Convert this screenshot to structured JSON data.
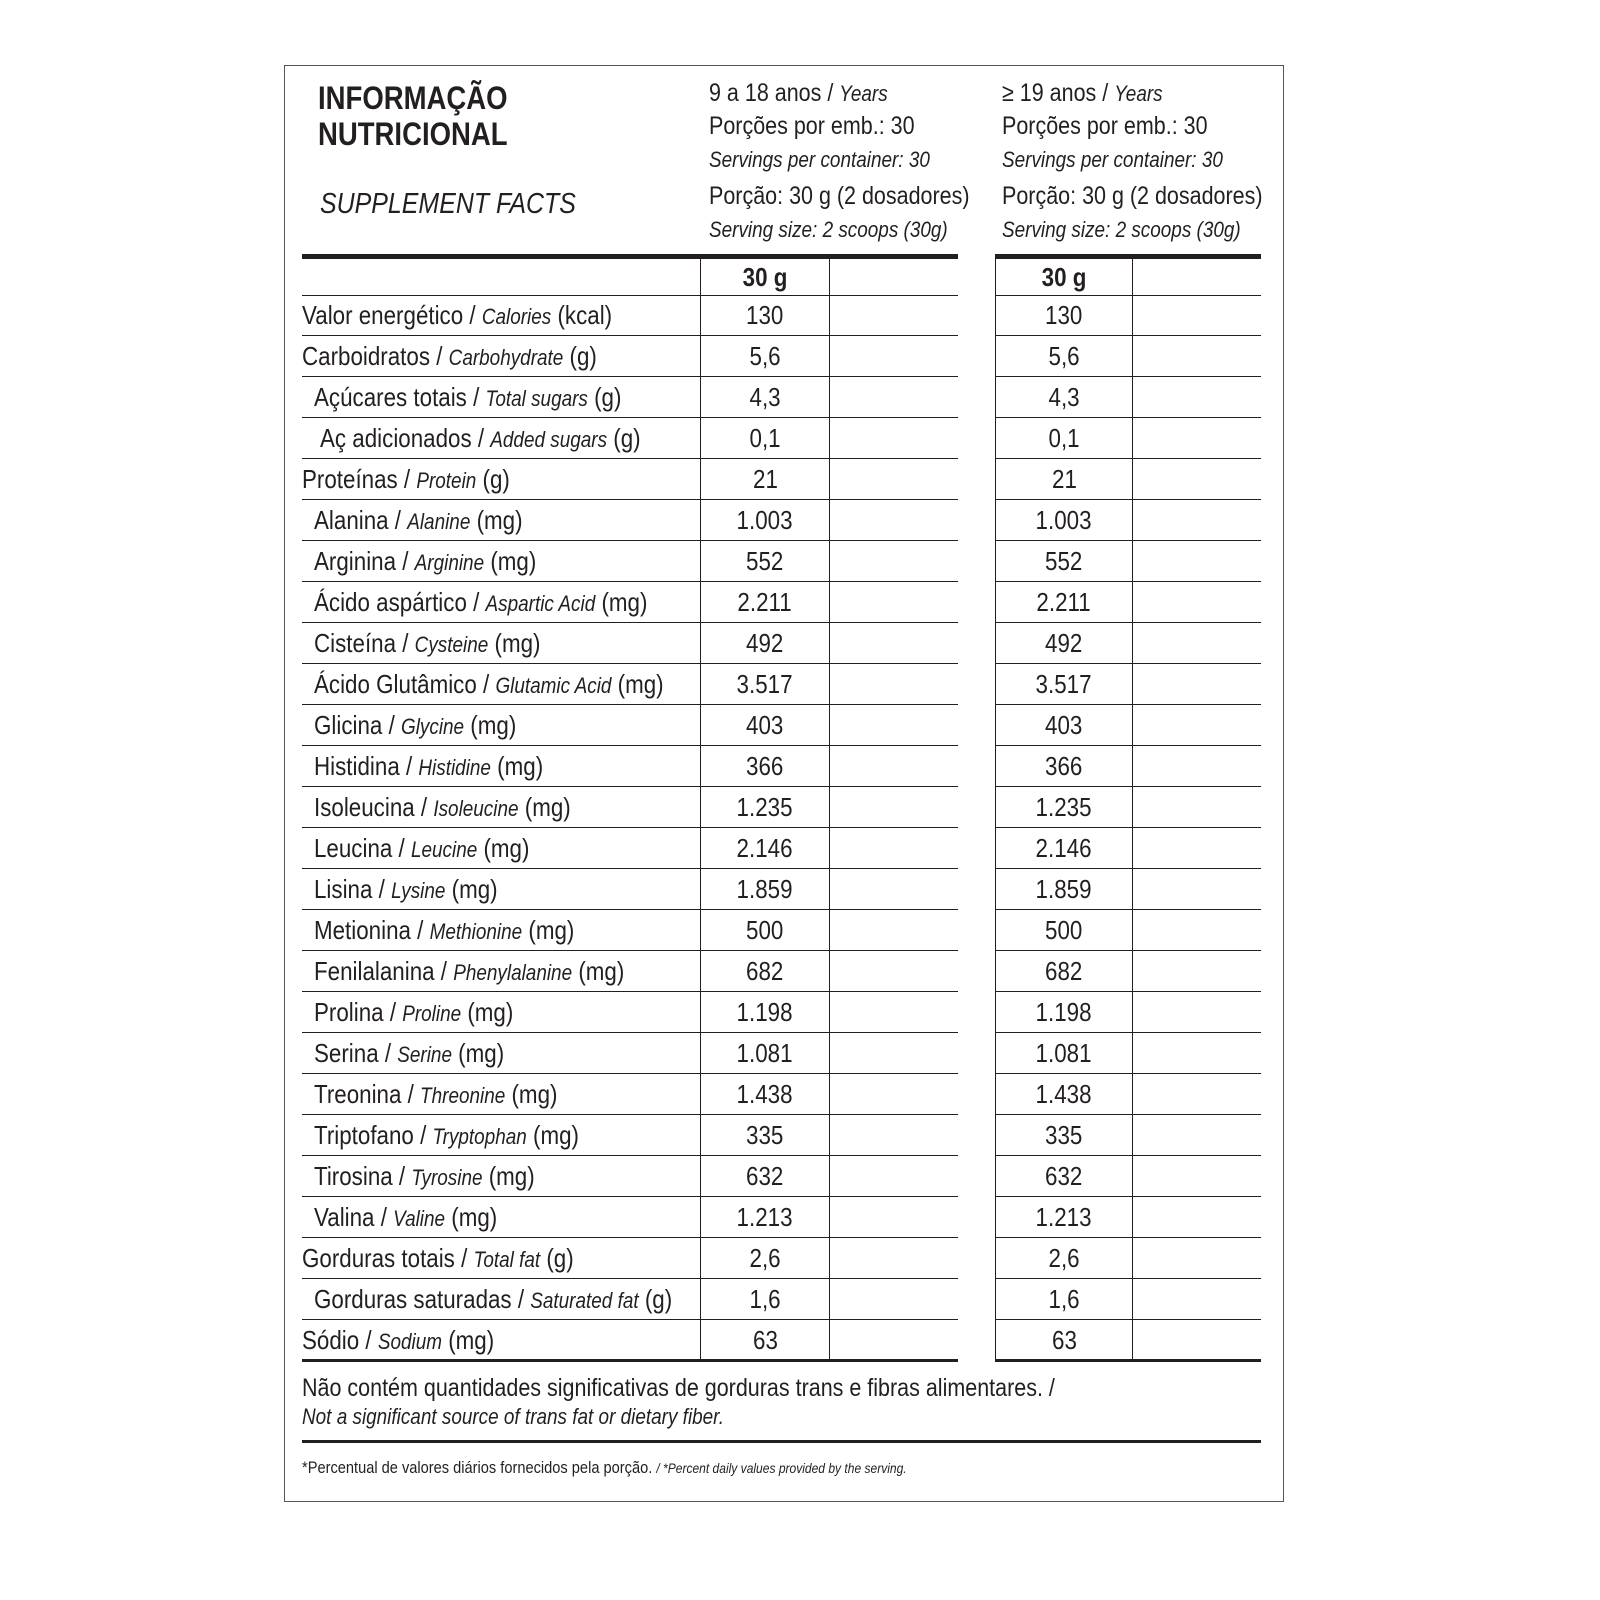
{
  "header": {
    "title_line1": "INFORMAÇÃO",
    "title_line2": "NUTRICIONAL",
    "subtitle": "SUPPLEMENT FACTS",
    "columns": [
      {
        "age": "9 a 18 anos",
        "age_sep": " / ",
        "age_en": "Years",
        "servings_pt": "Porções por emb.: 30",
        "servings_en": "Servings per container: 30",
        "portion_pt": "Porção: 30 g (2 dosadores)",
        "portion_en": "Serving size: 2 scoops (30g)"
      },
      {
        "age": "≥ 19 anos",
        "age_sep": " / ",
        "age_en": "Years",
        "servings_pt": "Porções por emb.: 30",
        "servings_en": "Servings per container: 30",
        "portion_pt": "Porção: 30 g (2 dosadores)",
        "portion_en": "Serving size: 2 scoops (30g)"
      }
    ]
  },
  "table": {
    "column_header": "30 g",
    "rows": [
      {
        "pt": "Valor energético",
        "en": "Calories",
        "unit": "(kcal)",
        "indent": 0,
        "v1": "130",
        "v2": "130"
      },
      {
        "pt": "Carboidratos",
        "en": "Carbohydrate",
        "unit": "(g)",
        "indent": 0,
        "v1": "5,6",
        "v2": "5,6"
      },
      {
        "pt": "Açúcares totais",
        "en": "Total sugars",
        "unit": "(g)",
        "indent": 1,
        "v1": "4,3",
        "v2": "4,3"
      },
      {
        "pt": "Aç adicionados",
        "en": "Added sugars",
        "unit": "(g)",
        "indent": 2,
        "v1": "0,1",
        "v2": "0,1"
      },
      {
        "pt": "Proteínas",
        "en": "Protein",
        "unit": "(g)",
        "indent": 0,
        "v1": "21",
        "v2": "21"
      },
      {
        "pt": "Alanina",
        "en": "Alanine",
        "unit": "(mg)",
        "indent": 1,
        "v1": "1.003",
        "v2": "1.003"
      },
      {
        "pt": "Arginina",
        "en": "Arginine",
        "unit": "(mg)",
        "indent": 1,
        "v1": "552",
        "v2": "552"
      },
      {
        "pt": "Ácido aspártico",
        "en": "Aspartic Acid",
        "unit": "(mg)",
        "indent": 1,
        "v1": "2.211",
        "v2": "2.211"
      },
      {
        "pt": "Cisteína",
        "en": "Cysteine",
        "unit": "(mg)",
        "indent": 1,
        "v1": "492",
        "v2": "492"
      },
      {
        "pt": "Ácido Glutâmico",
        "en": "Glutamic Acid",
        "unit": "(mg)",
        "indent": 1,
        "v1": "3.517",
        "v2": "3.517"
      },
      {
        "pt": "Glicina",
        "en": "Glycine",
        "unit": "(mg)",
        "indent": 1,
        "v1": "403",
        "v2": "403"
      },
      {
        "pt": "Histidina",
        "en": "Histidine",
        "unit": "(mg)",
        "indent": 1,
        "v1": "366",
        "v2": "366"
      },
      {
        "pt": "Isoleucina",
        "en": "Isoleucine",
        "unit": "(mg)",
        "indent": 1,
        "v1": "1.235",
        "v2": "1.235"
      },
      {
        "pt": "Leucina",
        "en": "Leucine",
        "unit": "(mg)",
        "indent": 1,
        "v1": "2.146",
        "v2": "2.146"
      },
      {
        "pt": "Lisina",
        "en": "Lysine",
        "unit": "(mg)",
        "indent": 1,
        "v1": "1.859",
        "v2": "1.859"
      },
      {
        "pt": "Metionina",
        "en": "Methionine",
        "unit": "(mg)",
        "indent": 1,
        "v1": "500",
        "v2": "500"
      },
      {
        "pt": "Fenilalanina",
        "en": "Phenylalanine",
        "unit": "(mg)",
        "indent": 1,
        "v1": "682",
        "v2": "682"
      },
      {
        "pt": "Prolina",
        "en": "Proline",
        "unit": "(mg)",
        "indent": 1,
        "v1": "1.198",
        "v2": "1.198"
      },
      {
        "pt": "Serina",
        "en": "Serine",
        "unit": "(mg)",
        "indent": 1,
        "v1": "1.081",
        "v2": "1.081"
      },
      {
        "pt": "Treonina",
        "en": "Threonine",
        "unit": "(mg)",
        "indent": 1,
        "v1": "1.438",
        "v2": "1.438"
      },
      {
        "pt": "Triptofano",
        "en": "Tryptophan",
        "unit": "(mg)",
        "indent": 1,
        "v1": "335",
        "v2": "335"
      },
      {
        "pt": "Tirosina",
        "en": "Tyrosine",
        "unit": "(mg)",
        "indent": 1,
        "v1": "632",
        "v2": "632"
      },
      {
        "pt": "Valina",
        "en": "Valine",
        "unit": "(mg)",
        "indent": 1,
        "v1": "1.213",
        "v2": "1.213"
      },
      {
        "pt": "Gorduras totais",
        "en": "Total fat",
        "unit": "(g)",
        "indent": 0,
        "v1": "2,6",
        "v2": "2,6"
      },
      {
        "pt": "Gorduras saturadas",
        "en": "Saturated fat",
        "unit": "(g)",
        "indent": 1,
        "v1": "1,6",
        "v2": "1,6"
      },
      {
        "pt": "Sódio",
        "en": "Sodium",
        "unit": "(mg)",
        "indent": 0,
        "v1": "63",
        "v2": "63"
      }
    ]
  },
  "notes": {
    "trans_pt": "Não contém quantidades significativas de gorduras trans e fibras alimentares. / ",
    "trans_en": "Not a significant source of trans fat or dietary fiber.",
    "footnote_pt": "*Percentual de valores diários fornecidos pela porção. ",
    "footnote_en": "/ *Percent daily values provided by the serving."
  }
}
